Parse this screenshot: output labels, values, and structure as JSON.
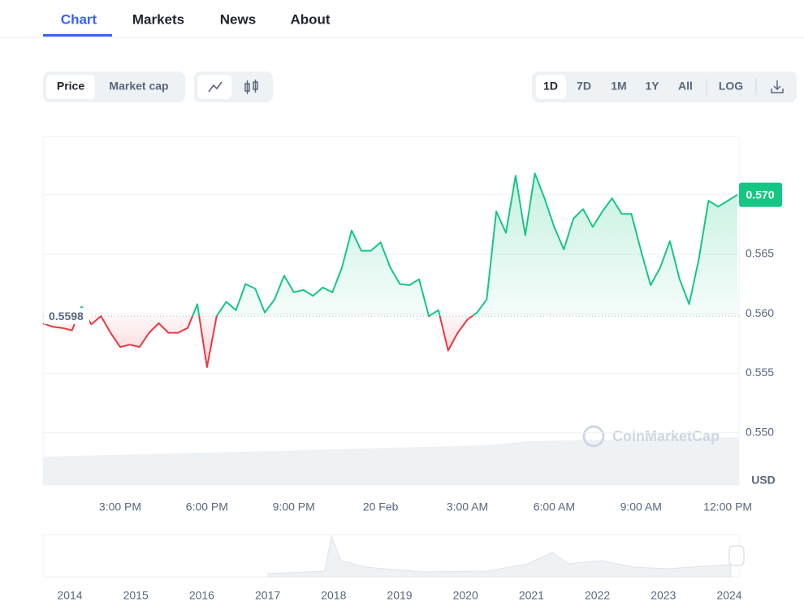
{
  "tabs": [
    "Chart",
    "Markets",
    "News",
    "About"
  ],
  "toolbar": {
    "metric": [
      "Price",
      "Market cap"
    ],
    "ranges": [
      "1D",
      "7D",
      "1M",
      "1Y",
      "All"
    ],
    "scale": "LOG"
  },
  "watermark": "CoinMarketCap",
  "navigator_labels": [
    "2014",
    "2015",
    "2016",
    "2017",
    "2018",
    "2019",
    "2020",
    "2021",
    "2022",
    "2023",
    "2024"
  ],
  "chart_data": {
    "type": "line",
    "categories": [
      null,
      null,
      null,
      null,
      null,
      null,
      null,
      null,
      "3:00 PM",
      null,
      null,
      null,
      null,
      null,
      null,
      null,
      null,
      "6:00 PM",
      null,
      null,
      null,
      null,
      null,
      null,
      null,
      null,
      "9:00 PM",
      null,
      null,
      null,
      null,
      null,
      null,
      null,
      null,
      "20 Feb",
      null,
      null,
      null,
      null,
      null,
      null,
      null,
      null,
      "3:00 AM",
      null,
      null,
      null,
      null,
      null,
      null,
      null,
      null,
      "6:00 AM",
      null,
      null,
      null,
      null,
      null,
      null,
      null,
      null,
      "9:00 AM",
      null,
      null,
      null,
      null,
      null,
      null,
      null,
      null,
      "12:00 PM",
      null
    ],
    "values": [
      0.5592,
      0.5589,
      0.5588,
      0.5586,
      0.5606,
      0.5591,
      0.5598,
      0.5584,
      0.5572,
      0.5574,
      0.5572,
      0.5584,
      0.5592,
      0.5584,
      0.5584,
      0.5588,
      0.5608,
      0.5555,
      0.5598,
      0.561,
      0.5603,
      0.5625,
      0.5621,
      0.5601,
      0.5612,
      0.5632,
      0.5618,
      0.562,
      0.5615,
      0.5622,
      0.5618,
      0.5639,
      0.567,
      0.5653,
      0.5653,
      0.566,
      0.5639,
      0.5625,
      0.5624,
      0.5629,
      0.5598,
      0.5603,
      0.5569,
      0.5584,
      0.5595,
      0.5601,
      0.5612,
      0.5686,
      0.5668,
      0.5716,
      0.5666,
      0.5718,
      0.5697,
      0.5673,
      0.5654,
      0.568,
      0.5688,
      0.5673,
      0.5686,
      0.5697,
      0.5684,
      0.5684,
      0.5653,
      0.5624,
      0.5639,
      0.5661,
      0.5629,
      0.5608,
      0.5646,
      0.5695,
      0.569,
      0.5695,
      0.57
    ],
    "value_labels": [
      null,
      null,
      null,
      null,
      null,
      null,
      null,
      null,
      null,
      null,
      null,
      null,
      null,
      null,
      null,
      null,
      null,
      null,
      null,
      null,
      null,
      null,
      null,
      null,
      null,
      null,
      null,
      null,
      null,
      null,
      null,
      null,
      null,
      null,
      null,
      null,
      null,
      null,
      null,
      null,
      null,
      null,
      null,
      null,
      null,
      null,
      null,
      null,
      null,
      null,
      null,
      null,
      null,
      null,
      null,
      null,
      null,
      null,
      null,
      null,
      null,
      null,
      null,
      null,
      null,
      null,
      null,
      null,
      null,
      null,
      null,
      null,
      "0.570"
    ],
    "baseline": 0.5598,
    "color_up": "#16c784",
    "color_down": "#ea3943",
    "ylim": [
      0.5456,
      0.5749
    ],
    "yticks": [
      {
        "value": 0.55,
        "label": "0.550"
      },
      0.555,
      {
        "value": 0.56,
        "label": "0.560"
      },
      0.565,
      {
        "value": 0.57,
        "label": "0.570"
      }
    ],
    "y_label": "USD",
    "grid": true
  }
}
